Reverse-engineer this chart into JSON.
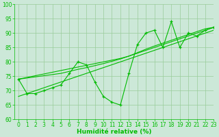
{
  "xlabel": "Humidité relative (%)",
  "bg_color": "#cce8d8",
  "grid_color": "#99cc99",
  "line_color": "#00bb00",
  "x_data": [
    0,
    1,
    2,
    3,
    4,
    5,
    6,
    7,
    8,
    9,
    10,
    11,
    12,
    13,
    14,
    15,
    16,
    17,
    18,
    19,
    20,
    21,
    22,
    23
  ],
  "y_main": [
    74,
    69,
    69,
    70,
    71,
    72,
    76,
    80,
    79,
    73,
    68,
    66,
    65,
    76,
    86,
    90,
    91,
    85,
    94,
    85,
    90,
    89,
    91,
    92
  ],
  "y_line1": [
    68,
    69,
    70,
    71,
    72,
    73,
    74,
    75,
    76,
    77,
    78,
    79,
    80,
    81,
    82,
    83,
    84,
    85,
    86,
    87,
    88,
    89,
    90,
    91
  ],
  "y_line2": [
    74,
    74.6,
    75.2,
    75.8,
    76.4,
    77,
    77.6,
    78.2,
    78.8,
    79.4,
    80,
    80.6,
    81.2,
    82,
    83,
    84,
    85,
    86,
    87,
    88,
    89,
    90,
    91,
    92
  ],
  "y_line3": [
    74,
    74.4,
    74.8,
    75.2,
    75.6,
    76,
    76.7,
    77.4,
    78,
    78.7,
    79.4,
    80.2,
    81,
    82,
    83.2,
    84.4,
    85.5,
    86.5,
    87.5,
    88.5,
    89.5,
    90.5,
    91.5,
    92
  ],
  "ylim": [
    60,
    100
  ],
  "xlim": [
    -0.5,
    23
  ],
  "yticks": [
    60,
    65,
    70,
    75,
    80,
    85,
    90,
    95,
    100
  ],
  "xticks": [
    0,
    1,
    2,
    3,
    4,
    5,
    6,
    7,
    8,
    9,
    10,
    11,
    12,
    13,
    14,
    15,
    16,
    17,
    18,
    19,
    20,
    21,
    22,
    23
  ]
}
